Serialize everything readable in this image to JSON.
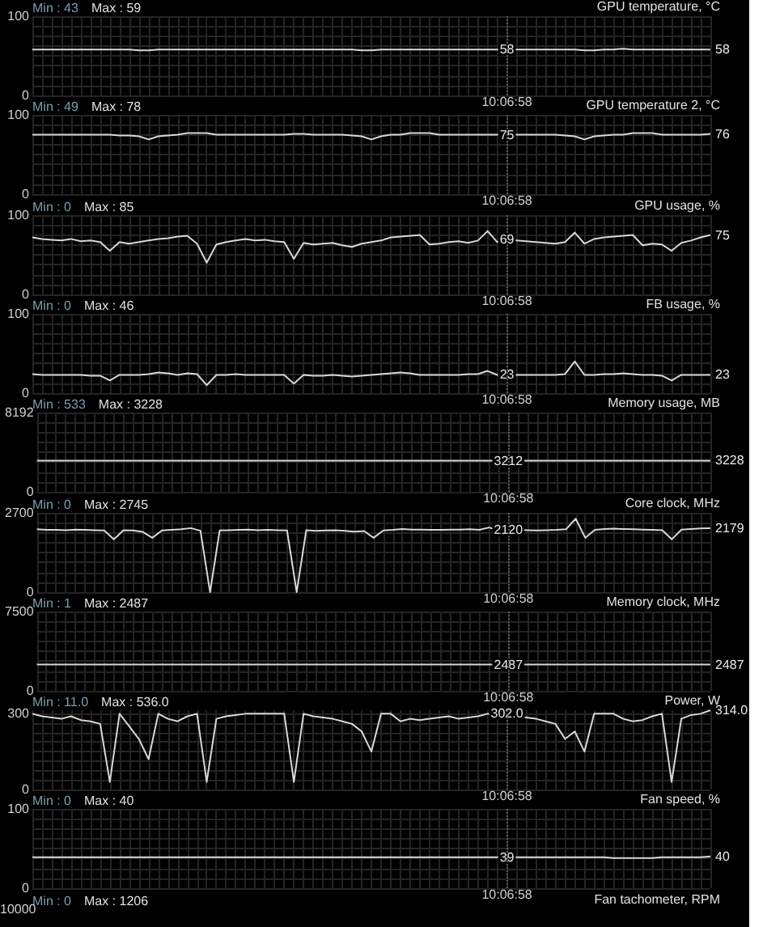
{
  "chart_data": [
    {
      "type": "line",
      "title": "GPU temperature, °C",
      "annotations": [
        "Min : 43",
        "Max : 59"
      ],
      "color": "#d8d8d8",
      "marker": "none",
      "grid": true,
      "categories": [
        null,
        null,
        null,
        null,
        null,
        null,
        null,
        null,
        null,
        null,
        null,
        null,
        null,
        null,
        null,
        null,
        null,
        null,
        null,
        null,
        null,
        null,
        null,
        null,
        null,
        null,
        null,
        null,
        null,
        null,
        null,
        null,
        null,
        null,
        null,
        null,
        null,
        null,
        null,
        null,
        null,
        null,
        null,
        null,
        null,
        null,
        null,
        null,
        null,
        "10:06:58",
        null,
        null,
        null,
        null,
        null,
        null,
        null,
        null,
        null,
        null,
        null,
        null,
        null,
        null,
        null,
        null,
        null,
        null,
        null,
        null,
        null
      ],
      "values": [
        58,
        58,
        58,
        58,
        58,
        58,
        58,
        58,
        58,
        58,
        58,
        57,
        57,
        58,
        58,
        58,
        58,
        58,
        58,
        58,
        58,
        58,
        58,
        58,
        58,
        58,
        58,
        58,
        58,
        58,
        58,
        58,
        58,
        58,
        57,
        57,
        58,
        58,
        58,
        58,
        58,
        58,
        58,
        58,
        58,
        58,
        58,
        58,
        58,
        58,
        58,
        58,
        58,
        58,
        58,
        58,
        58,
        57,
        57,
        58,
        58,
        59,
        58,
        58,
        58,
        58,
        58,
        58,
        58,
        58,
        58
      ],
      "value_labels": [
        null,
        null,
        null,
        null,
        null,
        null,
        null,
        null,
        null,
        null,
        null,
        null,
        null,
        null,
        null,
        null,
        null,
        null,
        null,
        null,
        null,
        null,
        null,
        null,
        null,
        null,
        null,
        null,
        null,
        null,
        null,
        null,
        null,
        null,
        null,
        null,
        null,
        null,
        null,
        null,
        null,
        null,
        null,
        null,
        null,
        null,
        null,
        null,
        null,
        "58",
        null,
        null,
        null,
        null,
        null,
        null,
        null,
        null,
        null,
        null,
        null,
        null,
        null,
        null,
        null,
        null,
        null,
        null,
        null,
        null,
        "58"
      ],
      "ylim": [
        0,
        100
      ],
      "yticks": [
        0,
        {
          "value": 12.5,
          "label": null
        },
        {
          "value": 25,
          "label": null
        },
        {
          "value": 37.5,
          "label": null
        },
        {
          "value": 50,
          "label": null
        },
        {
          "value": 62.5,
          "label": null
        },
        {
          "value": 75,
          "label": null
        },
        {
          "value": 87.5,
          "label": null
        },
        100
      ],
      "ref_lines": [
        {
          "axis": "x",
          "value": "10:06:58",
          "line_style": "dotted",
          "color": "#5a5a5a"
        }
      ]
    },
    {
      "type": "line",
      "title": "GPU temperature 2, °C",
      "annotations": [
        "Min : 49",
        "Max : 78"
      ],
      "color": "#d8d8d8",
      "marker": "none",
      "grid": true,
      "categories": [
        null,
        null,
        null,
        null,
        null,
        null,
        null,
        null,
        null,
        null,
        null,
        null,
        null,
        null,
        null,
        null,
        null,
        null,
        null,
        null,
        null,
        null,
        null,
        null,
        null,
        null,
        null,
        null,
        null,
        null,
        null,
        null,
        null,
        null,
        null,
        null,
        null,
        null,
        null,
        null,
        null,
        null,
        null,
        null,
        null,
        null,
        null,
        null,
        null,
        "10:06:58",
        null,
        null,
        null,
        null,
        null,
        null,
        null,
        null,
        null,
        null,
        null,
        null,
        null,
        null,
        null,
        null,
        null,
        null,
        null,
        null,
        null
      ],
      "values": [
        75,
        75,
        75,
        75,
        75,
        75,
        75,
        75,
        75,
        74,
        74,
        73,
        69,
        73,
        74,
        75,
        77,
        77,
        77,
        75,
        75,
        75,
        75,
        75,
        75,
        75,
        75,
        76,
        76,
        75,
        75,
        75,
        75,
        74,
        73,
        69,
        73,
        75,
        75,
        77,
        77,
        77,
        75,
        75,
        75,
        75,
        75,
        75,
        75,
        75,
        75,
        75,
        75,
        75,
        75,
        74,
        73,
        69,
        73,
        74,
        75,
        75,
        77,
        77,
        77,
        75,
        75,
        75,
        75,
        75,
        76
      ],
      "value_labels": [
        null,
        null,
        null,
        null,
        null,
        null,
        null,
        null,
        null,
        null,
        null,
        null,
        null,
        null,
        null,
        null,
        null,
        null,
        null,
        null,
        null,
        null,
        null,
        null,
        null,
        null,
        null,
        null,
        null,
        null,
        null,
        null,
        null,
        null,
        null,
        null,
        null,
        null,
        null,
        null,
        null,
        null,
        null,
        null,
        null,
        null,
        null,
        null,
        null,
        "75",
        null,
        null,
        null,
        null,
        null,
        null,
        null,
        null,
        null,
        null,
        null,
        null,
        null,
        null,
        null,
        null,
        null,
        null,
        null,
        null,
        "76"
      ],
      "ylim": [
        0,
        100
      ],
      "yticks": [
        0,
        {
          "value": 12.5,
          "label": null
        },
        {
          "value": 25,
          "label": null
        },
        {
          "value": 37.5,
          "label": null
        },
        {
          "value": 50,
          "label": null
        },
        {
          "value": 62.5,
          "label": null
        },
        {
          "value": 75,
          "label": null
        },
        {
          "value": 87.5,
          "label": null
        },
        100
      ],
      "ref_lines": [
        {
          "axis": "x",
          "value": "10:06:58",
          "line_style": "dotted",
          "color": "#5a5a5a"
        }
      ]
    },
    {
      "type": "line",
      "title": "GPU usage, %",
      "annotations": [
        "Min : 0",
        "Max : 85"
      ],
      "color": "#d8d8d8",
      "marker": "none",
      "grid": true,
      "categories": [
        null,
        null,
        null,
        null,
        null,
        null,
        null,
        null,
        null,
        null,
        null,
        null,
        null,
        null,
        null,
        null,
        null,
        null,
        null,
        null,
        null,
        null,
        null,
        null,
        null,
        null,
        null,
        null,
        null,
        null,
        null,
        null,
        null,
        null,
        null,
        null,
        null,
        null,
        null,
        null,
        null,
        null,
        null,
        null,
        null,
        null,
        null,
        null,
        null,
        "10:06:58",
        null,
        null,
        null,
        null,
        null,
        null,
        null,
        null,
        null,
        null,
        null,
        null,
        null,
        null,
        null,
        null,
        null,
        null,
        null,
        null,
        null
      ],
      "values": [
        72,
        70,
        69,
        68,
        70,
        67,
        68,
        66,
        55,
        66,
        64,
        66,
        68,
        70,
        71,
        73,
        74,
        64,
        40,
        63,
        66,
        68,
        70,
        68,
        69,
        67,
        66,
        45,
        65,
        63,
        64,
        65,
        62,
        60,
        64,
        66,
        68,
        72,
        73,
        74,
        75,
        63,
        64,
        66,
        67,
        65,
        68,
        80,
        66,
        69,
        68,
        67,
        66,
        65,
        64,
        66,
        78,
        64,
        70,
        72,
        73,
        74,
        75,
        62,
        64,
        63,
        55,
        65,
        68,
        72,
        75
      ],
      "value_labels": [
        null,
        null,
        null,
        null,
        null,
        null,
        null,
        null,
        null,
        null,
        null,
        null,
        null,
        null,
        null,
        null,
        null,
        null,
        null,
        null,
        null,
        null,
        null,
        null,
        null,
        null,
        null,
        null,
        null,
        null,
        null,
        null,
        null,
        null,
        null,
        null,
        null,
        null,
        null,
        null,
        null,
        null,
        null,
        null,
        null,
        null,
        null,
        null,
        null,
        "69",
        null,
        null,
        null,
        null,
        null,
        null,
        null,
        null,
        null,
        null,
        null,
        null,
        null,
        null,
        null,
        null,
        null,
        null,
        null,
        null,
        "75"
      ],
      "ylim": [
        0,
        100
      ],
      "yticks": [
        0,
        {
          "value": 12.5,
          "label": null
        },
        {
          "value": 25,
          "label": null
        },
        {
          "value": 37.5,
          "label": null
        },
        {
          "value": 50,
          "label": null
        },
        {
          "value": 62.5,
          "label": null
        },
        {
          "value": 75,
          "label": null
        },
        {
          "value": 87.5,
          "label": null
        },
        100
      ],
      "ref_lines": [
        {
          "axis": "x",
          "value": "10:06:58",
          "line_style": "dotted",
          "color": "#5a5a5a"
        }
      ]
    },
    {
      "type": "line",
      "title": "FB usage, %",
      "annotations": [
        "Min : 0",
        "Max : 46"
      ],
      "color": "#d8d8d8",
      "marker": "none",
      "grid": true,
      "categories": [
        null,
        null,
        null,
        null,
        null,
        null,
        null,
        null,
        null,
        null,
        null,
        null,
        null,
        null,
        null,
        null,
        null,
        null,
        null,
        null,
        null,
        null,
        null,
        null,
        null,
        null,
        null,
        null,
        null,
        null,
        null,
        null,
        null,
        null,
        null,
        null,
        null,
        null,
        null,
        null,
        null,
        null,
        null,
        null,
        null,
        null,
        null,
        null,
        null,
        "10:06:58",
        null,
        null,
        null,
        null,
        null,
        null,
        null,
        null,
        null,
        null,
        null,
        null,
        null,
        null,
        null,
        null,
        null,
        null,
        null,
        null,
        null
      ],
      "values": [
        24,
        23,
        23,
        23,
        23,
        23,
        22,
        22,
        16,
        23,
        23,
        23,
        24,
        26,
        25,
        23,
        25,
        24,
        10,
        23,
        23,
        24,
        23,
        23,
        23,
        23,
        23,
        12,
        23,
        22,
        22,
        23,
        22,
        21,
        22,
        23,
        24,
        25,
        26,
        25,
        23,
        23,
        23,
        23,
        23,
        24,
        24,
        28,
        23,
        23,
        23,
        23,
        23,
        23,
        23,
        24,
        40,
        23,
        23,
        24,
        24,
        25,
        24,
        23,
        23,
        22,
        16,
        23,
        23,
        23,
        23
      ],
      "value_labels": [
        null,
        null,
        null,
        null,
        null,
        null,
        null,
        null,
        null,
        null,
        null,
        null,
        null,
        null,
        null,
        null,
        null,
        null,
        null,
        null,
        null,
        null,
        null,
        null,
        null,
        null,
        null,
        null,
        null,
        null,
        null,
        null,
        null,
        null,
        null,
        null,
        null,
        null,
        null,
        null,
        null,
        null,
        null,
        null,
        null,
        null,
        null,
        null,
        null,
        "23",
        null,
        null,
        null,
        null,
        null,
        null,
        null,
        null,
        null,
        null,
        null,
        null,
        null,
        null,
        null,
        null,
        null,
        null,
        null,
        null,
        "23"
      ],
      "ylim": [
        0,
        100
      ],
      "yticks": [
        0,
        {
          "value": 12.5,
          "label": null
        },
        {
          "value": 25,
          "label": null
        },
        {
          "value": 37.5,
          "label": null
        },
        {
          "value": 50,
          "label": null
        },
        {
          "value": 62.5,
          "label": null
        },
        {
          "value": 75,
          "label": null
        },
        {
          "value": 87.5,
          "label": null
        },
        100
      ],
      "ref_lines": [
        {
          "axis": "x",
          "value": "10:06:58",
          "line_style": "dotted",
          "color": "#5a5a5a"
        }
      ]
    },
    {
      "type": "line",
      "title": "Memory usage, MB",
      "annotations": [
        "Min : 533",
        "Max : 3228"
      ],
      "color": "#d8d8d8",
      "marker": "none",
      "grid": true,
      "categories": [
        null,
        null,
        null,
        null,
        null,
        null,
        null,
        null,
        null,
        null,
        null,
        null,
        null,
        null,
        null,
        null,
        null,
        null,
        null,
        null,
        null,
        null,
        null,
        null,
        null,
        null,
        null,
        null,
        null,
        null,
        null,
        null,
        null,
        null,
        null,
        null,
        null,
        null,
        null,
        null,
        null,
        null,
        null,
        null,
        null,
        null,
        null,
        null,
        null,
        "10:06:58",
        null,
        null,
        null,
        null,
        null,
        null,
        null,
        null,
        null,
        null,
        null,
        null,
        null,
        null,
        null,
        null,
        null,
        null,
        null,
        null,
        null
      ],
      "values": [
        3212,
        3212,
        3212,
        3212,
        3212,
        3212,
        3212,
        3212,
        3212,
        3212,
        3212,
        3212,
        3212,
        3212,
        3212,
        3212,
        3212,
        3212,
        3212,
        3212,
        3212,
        3212,
        3212,
        3212,
        3212,
        3212,
        3212,
        3212,
        3212,
        3212,
        3212,
        3212,
        3212,
        3212,
        3212,
        3212,
        3212,
        3212,
        3212,
        3212,
        3212,
        3212,
        3212,
        3212,
        3212,
        3212,
        3212,
        3212,
        3212,
        3212,
        3212,
        3212,
        3212,
        3212,
        3212,
        3212,
        3212,
        3212,
        3212,
        3212,
        3212,
        3212,
        3212,
        3212,
        3212,
        3212,
        3212,
        3212,
        3212,
        3212,
        3228
      ],
      "value_labels": [
        null,
        null,
        null,
        null,
        null,
        null,
        null,
        null,
        null,
        null,
        null,
        null,
        null,
        null,
        null,
        null,
        null,
        null,
        null,
        null,
        null,
        null,
        null,
        null,
        null,
        null,
        null,
        null,
        null,
        null,
        null,
        null,
        null,
        null,
        null,
        null,
        null,
        null,
        null,
        null,
        null,
        null,
        null,
        null,
        null,
        null,
        null,
        null,
        null,
        "3212",
        null,
        null,
        null,
        null,
        null,
        null,
        null,
        null,
        null,
        null,
        null,
        null,
        null,
        null,
        null,
        null,
        null,
        null,
        null,
        null,
        "3228"
      ],
      "ylim": [
        0,
        8192
      ],
      "yticks": [
        0,
        {
          "value": 1024,
          "label": null
        },
        {
          "value": 2048,
          "label": null
        },
        {
          "value": 3072,
          "label": null
        },
        {
          "value": 4096,
          "label": null
        },
        {
          "value": 5120,
          "label": null
        },
        {
          "value": 6144,
          "label": null
        },
        {
          "value": 7168,
          "label": null
        },
        8192
      ],
      "ref_lines": [
        {
          "axis": "x",
          "value": "10:06:58",
          "line_style": "dotted",
          "color": "#5a5a5a"
        }
      ]
    },
    {
      "type": "line",
      "title": "Core clock, MHz",
      "annotations": [
        "Min : 0",
        "Max : 2745"
      ],
      "color": "#d8d8d8",
      "marker": "none",
      "grid": true,
      "categories": [
        null,
        null,
        null,
        null,
        null,
        null,
        null,
        null,
        null,
        null,
        null,
        null,
        null,
        null,
        null,
        null,
        null,
        null,
        null,
        null,
        null,
        null,
        null,
        null,
        null,
        null,
        null,
        null,
        null,
        null,
        null,
        null,
        null,
        null,
        null,
        null,
        null,
        null,
        null,
        null,
        null,
        null,
        null,
        null,
        null,
        null,
        null,
        null,
        null,
        "10:06:58",
        null,
        null,
        null,
        null,
        null,
        null,
        null,
        null,
        null,
        null,
        null,
        null,
        null,
        null,
        null,
        null,
        null,
        null,
        null,
        null,
        null
      ],
      "values": [
        2140,
        2120,
        2120,
        2110,
        2130,
        2120,
        2110,
        2100,
        1800,
        2110,
        2100,
        2050,
        1850,
        2100,
        2120,
        2140,
        2180,
        2090,
        0,
        2100,
        2110,
        2120,
        2130,
        2110,
        2120,
        2110,
        2100,
        0,
        2110,
        2090,
        2100,
        2110,
        2090,
        2060,
        2080,
        1850,
        2100,
        2120,
        2150,
        2130,
        2130,
        2120,
        2120,
        2130,
        2130,
        2140,
        2120,
        2200,
        2110,
        2120,
        2120,
        2110,
        2100,
        2110,
        2120,
        2140,
        2500,
        1850,
        2120,
        2150,
        2160,
        2150,
        2140,
        2130,
        2120,
        2110,
        1800,
        2130,
        2150,
        2170,
        2179
      ],
      "value_labels": [
        null,
        null,
        null,
        null,
        null,
        null,
        null,
        null,
        null,
        null,
        null,
        null,
        null,
        null,
        null,
        null,
        null,
        null,
        null,
        null,
        null,
        null,
        null,
        null,
        null,
        null,
        null,
        null,
        null,
        null,
        null,
        null,
        null,
        null,
        null,
        null,
        null,
        null,
        null,
        null,
        null,
        null,
        null,
        null,
        null,
        null,
        null,
        null,
        null,
        "2120",
        null,
        null,
        null,
        null,
        null,
        null,
        null,
        null,
        null,
        null,
        null,
        null,
        null,
        null,
        null,
        null,
        null,
        null,
        null,
        null,
        "2179"
      ],
      "ylim": [
        0,
        2700
      ],
      "yticks": [
        0,
        {
          "value": 337.5,
          "label": null
        },
        {
          "value": 675,
          "label": null
        },
        {
          "value": 1012.5,
          "label": null
        },
        {
          "value": 1350,
          "label": null
        },
        {
          "value": 1687.5,
          "label": null
        },
        {
          "value": 2025,
          "label": null
        },
        {
          "value": 2362.5,
          "label": null
        },
        2700
      ],
      "ref_lines": [
        {
          "axis": "x",
          "value": "10:06:58",
          "line_style": "dotted",
          "color": "#5a5a5a"
        }
      ]
    },
    {
      "type": "line",
      "title": "Memory clock, MHz",
      "annotations": [
        "Min : 1",
        "Max : 2487"
      ],
      "color": "#d8d8d8",
      "marker": "none",
      "grid": true,
      "categories": [
        null,
        null,
        null,
        null,
        null,
        null,
        null,
        null,
        null,
        null,
        null,
        null,
        null,
        null,
        null,
        null,
        null,
        null,
        null,
        null,
        null,
        null,
        null,
        null,
        null,
        null,
        null,
        null,
        null,
        null,
        null,
        null,
        null,
        null,
        null,
        null,
        null,
        null,
        null,
        null,
        null,
        null,
        null,
        null,
        null,
        null,
        null,
        null,
        null,
        "10:06:58",
        null,
        null,
        null,
        null,
        null,
        null,
        null,
        null,
        null,
        null,
        null,
        null,
        null,
        null,
        null,
        null,
        null,
        null,
        null,
        null,
        null
      ],
      "values": [
        2487,
        2487,
        2487,
        2487,
        2487,
        2487,
        2487,
        2487,
        2487,
        2487,
        2487,
        2487,
        2487,
        2487,
        2487,
        2487,
        2487,
        2487,
        2487,
        2487,
        2487,
        2487,
        2487,
        2487,
        2487,
        2487,
        2487,
        2487,
        2487,
        2487,
        2487,
        2487,
        2487,
        2487,
        2487,
        2487,
        2487,
        2487,
        2487,
        2487,
        2487,
        2487,
        2487,
        2487,
        2487,
        2487,
        2487,
        2487,
        2487,
        2487,
        2487,
        2487,
        2487,
        2487,
        2487,
        2487,
        2487,
        2487,
        2487,
        2487,
        2487,
        2487,
        2487,
        2487,
        2487,
        2487,
        2487,
        2487,
        2487,
        2487,
        2487
      ],
      "value_labels": [
        null,
        null,
        null,
        null,
        null,
        null,
        null,
        null,
        null,
        null,
        null,
        null,
        null,
        null,
        null,
        null,
        null,
        null,
        null,
        null,
        null,
        null,
        null,
        null,
        null,
        null,
        null,
        null,
        null,
        null,
        null,
        null,
        null,
        null,
        null,
        null,
        null,
        null,
        null,
        null,
        null,
        null,
        null,
        null,
        null,
        null,
        null,
        null,
        null,
        "2487",
        null,
        null,
        null,
        null,
        null,
        null,
        null,
        null,
        null,
        null,
        null,
        null,
        null,
        null,
        null,
        null,
        null,
        null,
        null,
        null,
        "2487"
      ],
      "ylim": [
        0,
        7500
      ],
      "yticks": [
        0,
        {
          "value": 937.5,
          "label": null
        },
        {
          "value": 1875,
          "label": null
        },
        {
          "value": 2812.5,
          "label": null
        },
        {
          "value": 3750,
          "label": null
        },
        {
          "value": 4687.5,
          "label": null
        },
        {
          "value": 5625,
          "label": null
        },
        {
          "value": 6562.5,
          "label": null
        },
        7500
      ],
      "ref_lines": [
        {
          "axis": "x",
          "value": "10:06:58",
          "line_style": "dotted",
          "color": "#5a5a5a"
        }
      ]
    },
    {
      "type": "line",
      "title": "Power, W",
      "annotations": [
        "Min : 11.0",
        "Max : 536.0"
      ],
      "color": "#d8d8d8",
      "marker": "none",
      "grid": true,
      "categories": [
        null,
        null,
        null,
        null,
        null,
        null,
        null,
        null,
        null,
        null,
        null,
        null,
        null,
        null,
        null,
        null,
        null,
        null,
        null,
        null,
        null,
        null,
        null,
        null,
        null,
        null,
        null,
        null,
        null,
        null,
        null,
        null,
        null,
        null,
        null,
        null,
        null,
        null,
        null,
        null,
        null,
        null,
        null,
        null,
        null,
        null,
        null,
        null,
        null,
        "10:06:58",
        null,
        null,
        null,
        null,
        null,
        null,
        null,
        null,
        null,
        null,
        null,
        null,
        null,
        null,
        null,
        null,
        null,
        null,
        null,
        null,
        null
      ],
      "values": [
        300,
        290,
        285,
        280,
        290,
        275,
        270,
        260,
        30,
        300,
        250,
        200,
        120,
        300,
        280,
        270,
        290,
        300,
        30,
        280,
        290,
        295,
        300,
        300,
        300,
        300,
        300,
        30,
        300,
        290,
        285,
        280,
        270,
        260,
        230,
        150,
        300,
        300,
        270,
        280,
        275,
        280,
        285,
        290,
        280,
        285,
        290,
        300,
        295,
        302,
        290,
        285,
        280,
        270,
        260,
        200,
        230,
        150,
        300,
        300,
        300,
        280,
        270,
        275,
        290,
        300,
        30,
        280,
        295,
        300,
        314
      ],
      "value_labels": [
        null,
        null,
        null,
        null,
        null,
        null,
        null,
        null,
        null,
        null,
        null,
        null,
        null,
        null,
        null,
        null,
        null,
        null,
        null,
        null,
        null,
        null,
        null,
        null,
        null,
        null,
        null,
        null,
        null,
        null,
        null,
        null,
        null,
        null,
        null,
        null,
        null,
        null,
        null,
        null,
        null,
        null,
        null,
        null,
        null,
        null,
        null,
        null,
        null,
        "302.0",
        null,
        null,
        null,
        null,
        null,
        null,
        null,
        null,
        null,
        null,
        null,
        null,
        null,
        null,
        null,
        null,
        null,
        null,
        null,
        null,
        "314.0"
      ],
      "ylim": [
        0,
        314
      ],
      "yticks": [
        0,
        {
          "value": 37.5,
          "label": null
        },
        {
          "value": 75,
          "label": null
        },
        {
          "value": 112.5,
          "label": null
        },
        {
          "value": 150,
          "label": null
        },
        {
          "value": 187.5,
          "label": null
        },
        {
          "value": 225,
          "label": null
        },
        {
          "value": 262.5,
          "label": null
        },
        300
      ],
      "ref_lines": [
        {
          "axis": "x",
          "value": "10:06:58",
          "line_style": "dotted",
          "color": "#5a5a5a"
        }
      ]
    },
    {
      "type": "line",
      "title": "Fan speed, %",
      "annotations": [
        "Min : 0",
        "Max : 40"
      ],
      "color": "#d8d8d8",
      "marker": "none",
      "grid": true,
      "categories": [
        null,
        null,
        null,
        null,
        null,
        null,
        null,
        null,
        null,
        null,
        null,
        null,
        null,
        null,
        null,
        null,
        null,
        null,
        null,
        null,
        null,
        null,
        null,
        null,
        null,
        null,
        null,
        null,
        null,
        null,
        null,
        null,
        null,
        null,
        null,
        null,
        null,
        null,
        null,
        null,
        null,
        null,
        null,
        null,
        null,
        null,
        null,
        null,
        null,
        "10:06:58",
        null,
        null,
        null,
        null,
        null,
        null,
        null,
        null,
        null,
        null,
        null,
        null,
        null,
        null,
        null,
        null,
        null,
        null,
        null,
        null,
        null
      ],
      "values": [
        39,
        39,
        39,
        39,
        39,
        39,
        39,
        39,
        39,
        39,
        39,
        39,
        39,
        39,
        39,
        39,
        39,
        39,
        39,
        39,
        39,
        39,
        39,
        39,
        39,
        39,
        39,
        39,
        39,
        39,
        39,
        39,
        39,
        39,
        39,
        39,
        39,
        39,
        39,
        39,
        39,
        39,
        39,
        39,
        39,
        39,
        39,
        39,
        39,
        39,
        39,
        39,
        39,
        39,
        39,
        39,
        39,
        39,
        39,
        39,
        38,
        38,
        38,
        38,
        38,
        39,
        39,
        39,
        39,
        39,
        40
      ],
      "value_labels": [
        null,
        null,
        null,
        null,
        null,
        null,
        null,
        null,
        null,
        null,
        null,
        null,
        null,
        null,
        null,
        null,
        null,
        null,
        null,
        null,
        null,
        null,
        null,
        null,
        null,
        null,
        null,
        null,
        null,
        null,
        null,
        null,
        null,
        null,
        null,
        null,
        null,
        null,
        null,
        null,
        null,
        null,
        null,
        null,
        null,
        null,
        null,
        null,
        null,
        "39",
        null,
        null,
        null,
        null,
        null,
        null,
        null,
        null,
        null,
        null,
        null,
        null,
        null,
        null,
        null,
        null,
        null,
        null,
        null,
        null,
        "40"
      ],
      "ylim": [
        0,
        100
      ],
      "yticks": [
        0,
        {
          "value": 12.5,
          "label": null
        },
        {
          "value": 25,
          "label": null
        },
        {
          "value": 37.5,
          "label": null
        },
        {
          "value": 50,
          "label": null
        },
        {
          "value": 62.5,
          "label": null
        },
        {
          "value": 75,
          "label": null
        },
        {
          "value": 87.5,
          "label": null
        },
        100
      ],
      "ref_lines": [
        {
          "axis": "x",
          "value": "10:06:58",
          "line_style": "dotted",
          "color": "#5a5a5a"
        }
      ]
    },
    {
      "type": "other",
      "title": "Fan tachometer, RPM",
      "annotations": [
        "Min : 0",
        "Max : 1206",
        "10000"
      ]
    }
  ]
}
